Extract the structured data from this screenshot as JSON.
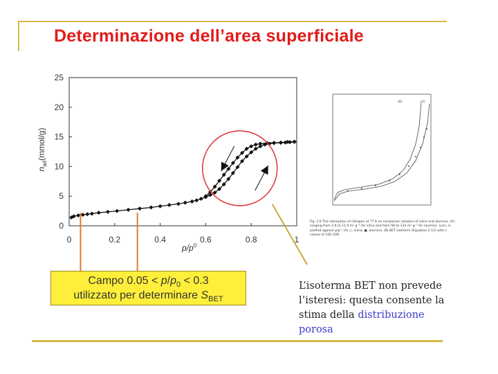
{
  "title": "Determinazione dell’area superficiale",
  "chart_data": {
    "type": "scatter",
    "title": "",
    "xlabel": "p/p0",
    "ylabel": "nad(mmol/g)",
    "xlim": [
      0,
      1
    ],
    "ylim": [
      0,
      25
    ],
    "x_ticks": [
      "0",
      "0.2",
      "0.4",
      "0.6",
      "0.8",
      "1"
    ],
    "y_ticks": [
      "0",
      "5",
      "10",
      "15",
      "20",
      "25"
    ],
    "grid": false,
    "series": [
      {
        "points": [
          [
            0.01,
            1.4
          ],
          [
            0.02,
            1.6
          ],
          [
            0.04,
            1.75
          ],
          [
            0.06,
            1.85
          ],
          [
            0.08,
            1.95
          ],
          [
            0.1,
            2.05
          ],
          [
            0.13,
            2.2
          ],
          [
            0.17,
            2.35
          ],
          [
            0.21,
            2.5
          ],
          [
            0.26,
            2.7
          ],
          [
            0.31,
            2.9
          ],
          [
            0.36,
            3.1
          ],
          [
            0.4,
            3.3
          ],
          [
            0.44,
            3.5
          ],
          [
            0.48,
            3.7
          ],
          [
            0.51,
            3.9
          ],
          [
            0.54,
            4.1
          ],
          [
            0.56,
            4.3
          ],
          [
            0.58,
            4.55
          ],
          [
            0.6,
            4.85
          ],
          [
            0.62,
            5.2
          ],
          [
            0.64,
            5.6
          ],
          [
            0.66,
            6.2
          ],
          [
            0.68,
            7.0
          ],
          [
            0.7,
            7.9
          ],
          [
            0.72,
            8.9
          ],
          [
            0.74,
            9.9
          ],
          [
            0.76,
            10.9
          ],
          [
            0.78,
            11.7
          ],
          [
            0.8,
            12.4
          ],
          [
            0.82,
            13.0
          ],
          [
            0.84,
            13.4
          ],
          [
            0.86,
            13.7
          ],
          [
            0.88,
            13.85
          ],
          [
            0.9,
            13.95
          ],
          [
            0.93,
            14.0
          ],
          [
            0.95,
            14.05
          ],
          [
            0.97,
            14.1
          ],
          [
            0.99,
            14.15
          ]
        ]
      },
      {
        "points": [
          [
            0.99,
            14.2
          ],
          [
            0.96,
            14.15
          ],
          [
            0.93,
            14.05
          ],
          [
            0.9,
            14.0
          ],
          [
            0.87,
            13.95
          ],
          [
            0.84,
            13.85
          ],
          [
            0.82,
            13.7
          ],
          [
            0.8,
            13.4
          ],
          [
            0.78,
            13.0
          ],
          [
            0.76,
            12.3
          ],
          [
            0.74,
            11.5
          ],
          [
            0.72,
            10.6
          ],
          [
            0.7,
            9.6
          ],
          [
            0.68,
            8.6
          ],
          [
            0.66,
            7.6
          ],
          [
            0.64,
            6.6
          ],
          [
            0.62,
            5.7
          ],
          [
            0.6,
            5.0
          ]
        ]
      }
    ],
    "annotations": {
      "range_markers_x": [
        0.05,
        0.3
      ],
      "hysteresis_circle_center": [
        0.75,
        9.7
      ],
      "circle_color": "#e03c3c",
      "marker_line_color": "#e07a2e",
      "pointer_line_color": "#c9a227"
    }
  },
  "campo": {
    "line1_prefix": "Campo  0.05 < ",
    "line1_p": "p",
    "line1_slash": "/",
    "line1_p0": "p",
    "line1_sub0": "0",
    "line1_suffix": " < 0.3",
    "line2_text": "utilizzato per determinare ",
    "line2_S": "S",
    "line2_sub": "BET"
  },
  "note": {
    "line1": "L’isoterma BET non prevede",
    "line2": "l’isteresi: questa consente la",
    "line3_prefix": "stima della ",
    "line3_highlight": "distribuzione",
    "line4_highlight": "porosa"
  },
  "thumb": {
    "caption": "Fig. 2.6 The adsorption of nitrogen at 77 K on nonporous samples of silica and alumina. (A) ranging from 2.6 to 11.9 m² g⁻¹ for silica and from 58 to 133 m² g⁻¹ for alumina. nₐ/nₘ is plotted against p/p°. (A) ○, silica; ●, alumina. (B) BET isotherm (Equation 2.12) with c values of 100–200.",
    "label_b": "(B)",
    "label_a": "(A)"
  },
  "colors": {
    "title": "#e01b1b",
    "decor": "#d8b84a",
    "campo_bg": "#ffef3a",
    "note_highlight": "#3b3bc9"
  }
}
